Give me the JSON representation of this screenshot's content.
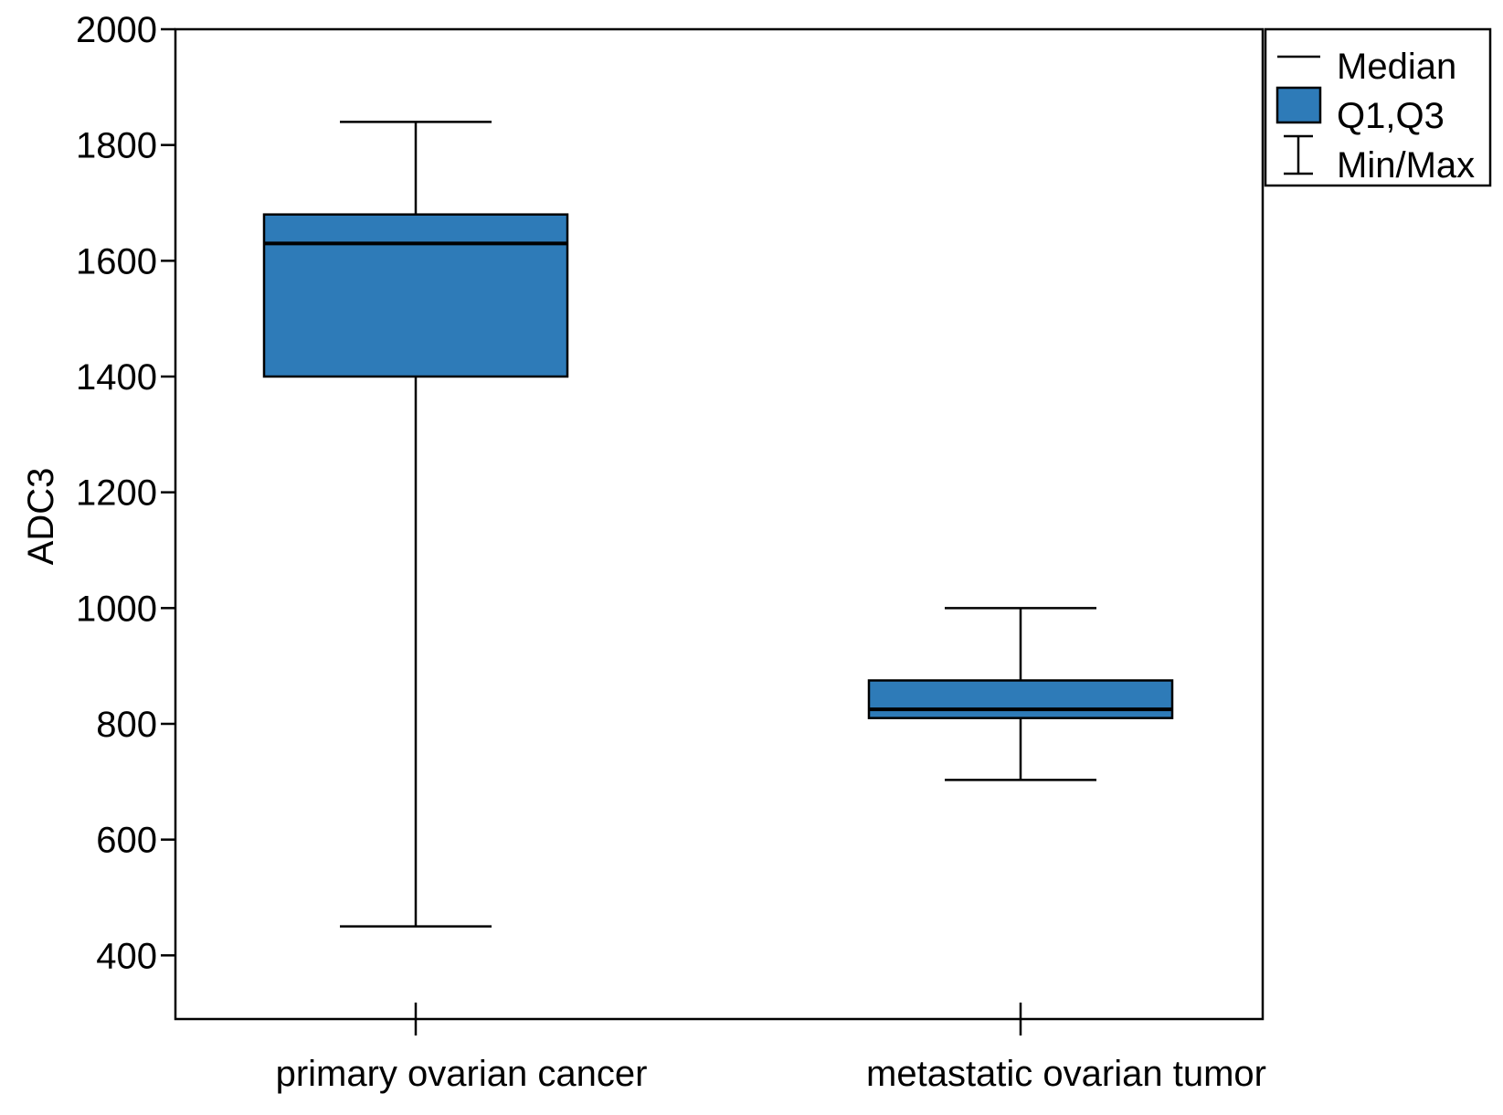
{
  "chart_data": {
    "type": "box",
    "title": "",
    "xlabel": "",
    "ylabel": "ADC3",
    "ylim": [
      290,
      2000
    ],
    "yticks": [
      400,
      600,
      800,
      1000,
      1200,
      1400,
      1600,
      1800,
      2000
    ],
    "categories": [
      "primary ovarian cancer",
      "metastatic ovarian tumor"
    ],
    "boxes": [
      {
        "name": "primary ovarian cancer",
        "min": 450,
        "q1": 1400,
        "median": 1630,
        "q3": 1680,
        "max": 1840
      },
      {
        "name": "metastatic ovarian tumor",
        "min": 703,
        "q1": 810,
        "median": 825,
        "q3": 875,
        "max": 1000
      }
    ],
    "legend": {
      "position": "top-right-outside",
      "items": [
        {
          "label": "Median",
          "symbol": "line"
        },
        {
          "label": "Q1,Q3",
          "symbol": "box"
        },
        {
          "label": "Min/Max",
          "symbol": "whisker"
        }
      ]
    },
    "colors": {
      "box_fill": "#2e7bb8",
      "line": "#000000"
    }
  }
}
